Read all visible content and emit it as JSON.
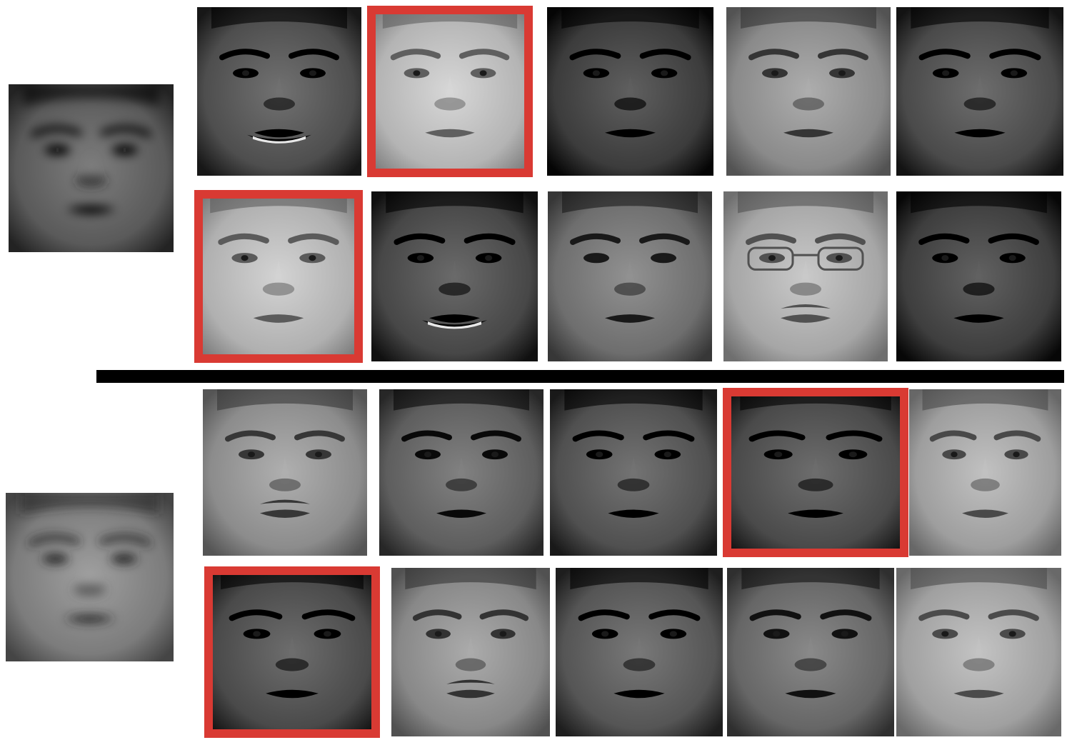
{
  "colors": {
    "background": "#ffffff",
    "highlight": "#d93a33",
    "divider": "#000000"
  },
  "groups": [
    {
      "name": "query-group-1",
      "query": {
        "content": "blurred-face",
        "tone": "#5a5a5a"
      },
      "rows": [
        [
          {
            "tone": "#4e4e4e",
            "highlighted": false,
            "features": [
              "smile-teeth"
            ]
          },
          {
            "tone": "#b4b4b4",
            "highlighted": true,
            "features": []
          },
          {
            "tone": "#3c3c3c",
            "highlighted": false,
            "features": []
          },
          {
            "tone": "#8a8a8a",
            "highlighted": false,
            "features": []
          },
          {
            "tone": "#4a4a4a",
            "highlighted": false,
            "features": []
          }
        ],
        [
          {
            "tone": "#b0b0b0",
            "highlighted": true,
            "features": []
          },
          {
            "tone": "#474747",
            "highlighted": false,
            "features": [
              "smile-teeth"
            ]
          },
          {
            "tone": "#6e6e6e",
            "highlighted": false,
            "features": []
          },
          {
            "tone": "#a6a6a6",
            "highlighted": false,
            "features": [
              "glasses",
              "mustache"
            ]
          },
          {
            "tone": "#3e3e3e",
            "highlighted": false,
            "features": []
          }
        ]
      ]
    },
    {
      "name": "query-group-2",
      "query": {
        "content": "blurred-face",
        "tone": "#7c7c7c"
      },
      "rows": [
        [
          {
            "tone": "#8c8c8c",
            "highlighted": false,
            "features": [
              "mustache"
            ]
          },
          {
            "tone": "#5e5e5e",
            "highlighted": false,
            "features": []
          },
          {
            "tone": "#505050",
            "highlighted": false,
            "features": []
          },
          {
            "tone": "#4a4a4a",
            "highlighted": true,
            "features": []
          },
          {
            "tone": "#9e9e9e",
            "highlighted": false,
            "features": []
          }
        ],
        [
          {
            "tone": "#4a4a4a",
            "highlighted": true,
            "features": []
          },
          {
            "tone": "#888888",
            "highlighted": false,
            "features": [
              "mustache"
            ]
          },
          {
            "tone": "#555555",
            "highlighted": false,
            "features": []
          },
          {
            "tone": "#666666",
            "highlighted": false,
            "features": []
          },
          {
            "tone": "#a0a0a0",
            "highlighted": false,
            "features": []
          }
        ]
      ]
    }
  ]
}
